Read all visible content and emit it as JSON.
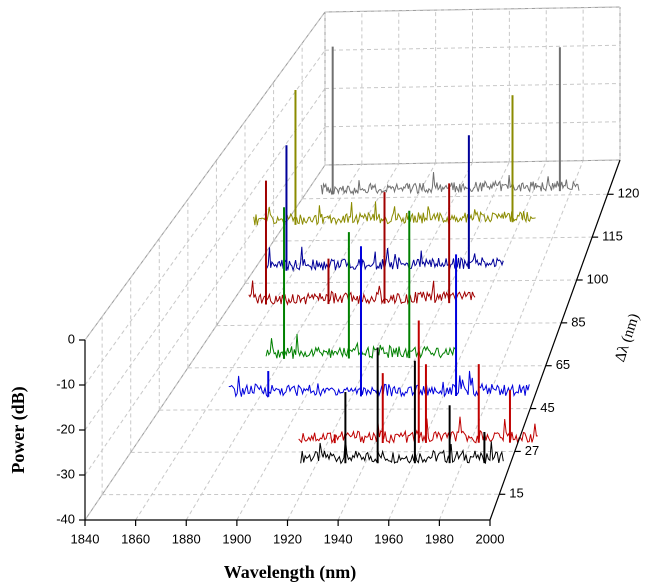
{
  "chart_data": {
    "type": "waterfall",
    "x_label": "Wavelength (nm)",
    "y_label": "Power (dB)",
    "z_label": "Δλ (nm)",
    "xlim": [
      1840,
      2000
    ],
    "xticks": [
      1840,
      1860,
      1880,
      1900,
      1920,
      1940,
      1960,
      1980,
      2000
    ],
    "ylim": [
      -40,
      0
    ],
    "yticks": [
      0,
      -10,
      -20,
      -30,
      -40
    ],
    "z_categories": [
      15,
      27,
      45,
      65,
      85,
      100,
      115,
      120
    ],
    "grid": true,
    "series": [
      {
        "color": "#000000",
        "span": [
          1920,
          2002
        ],
        "floor": -33,
        "x": [
          1938,
          1951,
          1966,
          1980,
          1994
        ],
        "values": [
          -17,
          -7,
          -10,
          -20,
          -26
        ]
      },
      {
        "color": "#c00000",
        "span": [
          1910,
          2010
        ],
        "floor": -38,
        "x": [
          1925,
          1945,
          1960,
          1963,
          1985,
          1998
        ],
        "values": [
          -36,
          -22,
          -10,
          -20,
          -20,
          -26
        ]
      },
      {
        "color": "#0000dd",
        "span": [
          1870,
          2000
        ],
        "floor": -37,
        "x": [
          1887,
          1927,
          1968
        ],
        "values": [
          -31,
          -2,
          -4
        ]
      },
      {
        "color": "#008000",
        "span": [
          1875,
          1960
        ],
        "floor": -38,
        "x": [
          1883,
          1912,
          1939
        ],
        "values": [
          -2,
          -8,
          -3
        ]
      },
      {
        "color": "#a00000",
        "span": [
          1855,
          1960
        ],
        "floor": -35,
        "x": [
          1863,
          1892,
          1918,
          1948
        ],
        "values": [
          -5,
          -24,
          -8,
          -6
        ]
      },
      {
        "color": "#000099",
        "span": [
          1850,
          1965
        ],
        "floor": -37,
        "x": [
          1860,
          1948
        ],
        "values": [
          -6,
          -4
        ]
      },
      {
        "color": "#8b8b00",
        "span": [
          1830,
          1972
        ],
        "floor": -36,
        "x": [
          1851,
          1960
        ],
        "values": [
          -2,
          -4
        ]
      },
      {
        "color": "#707070",
        "span": [
          1850,
          1985
        ],
        "floor": -39,
        "x": [
          1856,
          1975
        ],
        "values": [
          -1,
          -2
        ]
      }
    ]
  }
}
